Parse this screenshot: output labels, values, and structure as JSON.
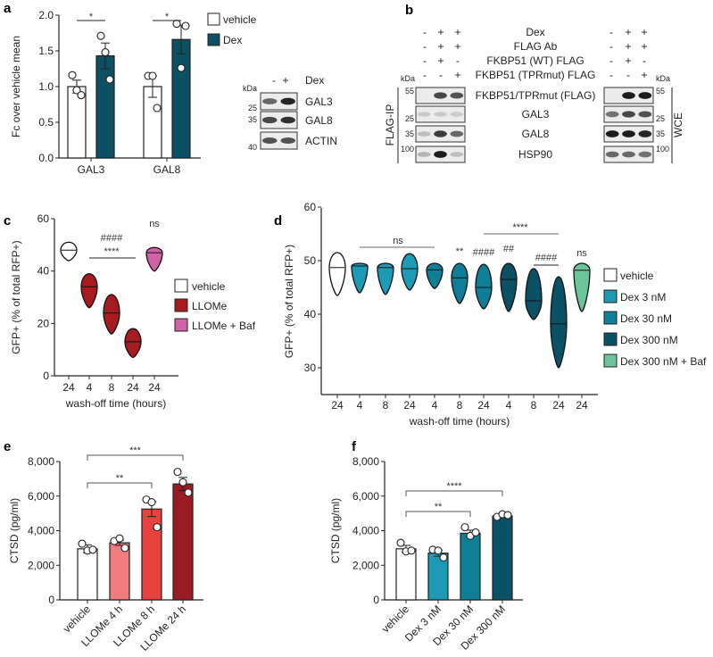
{
  "panel_labels": [
    "a",
    "b",
    "c",
    "d",
    "e",
    "f"
  ],
  "chart_data": [
    {
      "id": "a",
      "type": "bar",
      "ylabel": "Fc over vehicle mean",
      "ylim": [
        0,
        2.0
      ],
      "yticks": [
        "0.0",
        "0.5",
        "1.0",
        "1.5",
        "2.0"
      ],
      "ytick_values": [
        0,
        0.5,
        1.0,
        1.5,
        2.0
      ],
      "categories": [
        "GAL3",
        "GAL8"
      ],
      "series": [
        {
          "name": "vehicle",
          "color": "#ffffff",
          "values": [
            1.0,
            1.0
          ],
          "errors": [
            0.09,
            0.15
          ],
          "points": [
            [
              1.16,
              0.95,
              0.88
            ],
            [
              1.15,
              1.15,
              0.7
            ]
          ]
        },
        {
          "name": "Dex",
          "color": "#0d4f63",
          "values": [
            1.43,
            1.66
          ],
          "errors": [
            0.18,
            0.2
          ],
          "points": [
            [
              1.71,
              1.48,
              1.1
            ],
            [
              1.88,
              1.26,
              1.85
            ]
          ]
        }
      ],
      "significance": [
        {
          "category": "GAL3",
          "label": "*"
        },
        {
          "category": "GAL8",
          "label": "*"
        }
      ],
      "legend": [
        "vehicle",
        "Dex"
      ]
    },
    {
      "id": "c",
      "type": "violin",
      "ylabel": "GFP+ (% of total RFP+)",
      "xlabel": "wash-off time (hours)",
      "ylim": [
        0,
        60
      ],
      "yticks": [
        "0",
        "20",
        "40",
        "60"
      ],
      "ytick_values": [
        0,
        20,
        40,
        60
      ],
      "groups": [
        {
          "name": "vehicle",
          "color": "#ffffff",
          "x": "24",
          "median": 48,
          "min": 44,
          "max": 51
        },
        {
          "name": "LLOMe",
          "color": "#a51b1f",
          "x": "4",
          "median": 34,
          "min": 26,
          "max": 39
        },
        {
          "name": "LLOMe",
          "color": "#a51b1f",
          "x": "8",
          "median": 24,
          "min": 16,
          "max": 31
        },
        {
          "name": "LLOMe",
          "color": "#a51b1f",
          "x": "24",
          "median": 13,
          "min": 7,
          "max": 18
        },
        {
          "name": "LLOMe + Baf",
          "color": "#d060a8",
          "x": "24",
          "median": 47,
          "min": 40,
          "max": 49
        }
      ],
      "annotations": {
        "hash": "####",
        "stars": "****",
        "ns": "ns"
      },
      "legend": [
        {
          "label": "vehicle",
          "color": "#ffffff"
        },
        {
          "label": "LLOMe",
          "color": "#a51b1f"
        },
        {
          "label": "LLOMe + Baf",
          "color": "#d060a8"
        }
      ]
    },
    {
      "id": "d",
      "type": "violin",
      "ylabel": "GFP+ (% of total RFP+)",
      "xlabel": "wash-off time (hours)",
      "ylim": [
        25,
        60
      ],
      "yticks": [
        "30",
        "40",
        "50",
        "60"
      ],
      "ytick_values": [
        30,
        40,
        50,
        60
      ],
      "groups": [
        {
          "name": "vehicle",
          "color": "#ffffff",
          "x": "24",
          "median": 48.7,
          "min": 43.5,
          "max": 51.5
        },
        {
          "name": "Dex 3 nM",
          "color": "#1d9ab5",
          "x": "4",
          "median": 49,
          "min": 44,
          "max": 49.5
        },
        {
          "name": "Dex 3 nM",
          "color": "#1d9ab5",
          "x": "8",
          "median": 48.7,
          "min": 43.7,
          "max": 49.5
        },
        {
          "name": "Dex 3 nM",
          "color": "#1d9ab5",
          "x": "24",
          "median": 48.5,
          "min": 44.5,
          "max": 51.3
        },
        {
          "name": "Dex 30 nM",
          "color": "#0e7f96",
          "x": "4",
          "median": 48.3,
          "min": 44.8,
          "max": 49.5
        },
        {
          "name": "Dex 30 nM",
          "color": "#0e7f96",
          "x": "8",
          "median": 46.8,
          "min": 42,
          "max": 49.5
        },
        {
          "name": "Dex 30 nM",
          "color": "#0e7f96",
          "x": "24",
          "median": 45,
          "min": 41,
          "max": 49.3
        },
        {
          "name": "Dex 300 nM",
          "color": "#0b5166",
          "x": "4",
          "median": 46.5,
          "min": 40.5,
          "max": 49.5
        },
        {
          "name": "Dex 300 nM",
          "color": "#0b5166",
          "x": "8",
          "median": 42.5,
          "min": 39,
          "max": 48.5
        },
        {
          "name": "Dex 300 nM",
          "color": "#0b5166",
          "x": "24",
          "median": 38.2,
          "min": 30,
          "max": 47
        },
        {
          "name": "Dex 300 nM + Baf",
          "color": "#6cc49a",
          "x": "24",
          "median": 48.2,
          "min": 40.5,
          "max": 49.5
        }
      ],
      "annotations": {
        "ns_group": "ns",
        "stars2": "**",
        "hash4a": "####",
        "hash2": "##",
        "hash4b": "####",
        "stars4": "****",
        "ns_baf": "ns"
      },
      "legend": [
        {
          "label": "vehicle",
          "color": "#ffffff"
        },
        {
          "label": "Dex 3 nM",
          "color": "#1d9ab5"
        },
        {
          "label": "Dex 30 nM",
          "color": "#0e7f96"
        },
        {
          "label": "Dex 300 nM",
          "color": "#0b5166"
        },
        {
          "label": "Dex 300 nM + Baf",
          "color": "#6cc49a"
        }
      ]
    },
    {
      "id": "e",
      "type": "bar",
      "ylabel": "CTSD (pg/ml)",
      "ylim": [
        0,
        8000
      ],
      "yticks": [
        "0",
        "2,000",
        "4,000",
        "6,000",
        "8,000"
      ],
      "ytick_values": [
        0,
        2000,
        4000,
        6000,
        8000
      ],
      "categories": [
        "vehicle",
        "LLOMe 4 h",
        "LLOMe 8 h",
        "LLOMe 24 h"
      ],
      "colors": [
        "#ffffff",
        "#f07c80",
        "#e8413f",
        "#9b1b22"
      ],
      "values": [
        2950,
        3300,
        5250,
        6700
      ],
      "errors": [
        230,
        150,
        430,
        380
      ],
      "points": [
        [
          3250,
          2850,
          2900
        ],
        [
          3400,
          3550,
          3000
        ],
        [
          5800,
          5650,
          4200
        ],
        [
          7400,
          6800,
          6200
        ]
      ],
      "brackets": [
        {
          "from": 0,
          "to": 2,
          "label": "**"
        },
        {
          "from": 0,
          "to": 3,
          "label": "***"
        }
      ]
    },
    {
      "id": "f",
      "type": "bar",
      "ylabel": "CTSD (pg/ml)",
      "ylim": [
        0,
        8000
      ],
      "yticks": [
        "0",
        "2,000",
        "4,000",
        "6,000",
        "8,000"
      ],
      "ytick_values": [
        0,
        2000,
        4000,
        6000,
        8000
      ],
      "categories": [
        "vehicle",
        "Dex 3 nM",
        "Dex 30 nM",
        "Dex 300 nM"
      ],
      "colors": [
        "#ffffff",
        "#1d9ab5",
        "#0e7f96",
        "#0b5166"
      ],
      "values": [
        2950,
        2700,
        3850,
        4850
      ],
      "errors": [
        200,
        180,
        180,
        80
      ],
      "points": [
        [
          3300,
          2800,
          2850
        ],
        [
          2900,
          2850,
          2450
        ],
        [
          4200,
          3700,
          3900
        ],
        [
          4800,
          4950,
          4900
        ]
      ],
      "brackets": [
        {
          "from": 0,
          "to": 2,
          "label": "**"
        },
        {
          "from": 0,
          "to": 3,
          "label": "****"
        }
      ]
    }
  ],
  "blot_a": {
    "treatment_label": "Dex",
    "signs": [
      "-",
      "+"
    ],
    "kda": "kDa",
    "rows": [
      {
        "label": "GAL3",
        "marker": "25",
        "bands": [
          0.6,
          0.9
        ]
      },
      {
        "label": "GAL8",
        "marker": "35",
        "bands": [
          0.75,
          0.85
        ]
      },
      {
        "label": "ACTIN",
        "marker": "40",
        "bands": [
          0.7,
          0.7
        ]
      }
    ]
  },
  "blot_b": {
    "conditions": [
      {
        "label": "Dex",
        "signs": [
          "-",
          "+",
          "+"
        ]
      },
      {
        "label": "FLAG Ab",
        "signs": [
          "-",
          "+",
          "+"
        ]
      },
      {
        "label": "FKBP51 (WT) FLAG",
        "signs": [
          "-",
          "+",
          "-"
        ]
      },
      {
        "label": "FKBP51 (TPRmut) FLAG",
        "signs": [
          "-",
          "-",
          "+"
        ]
      }
    ],
    "kda": "kDa",
    "left_group": "FLAG-IP",
    "right_group": "WCE",
    "rows": [
      {
        "label": "FKBP51/TPRmut (FLAG)",
        "marker": "55",
        "ip": [
          0,
          0.75,
          0.7
        ],
        "wce": [
          0,
          0.95,
          0.95
        ]
      },
      {
        "label": "GAL3",
        "marker": "25",
        "ip": [
          0.15,
          0.15,
          0.15
        ],
        "wce": [
          0.55,
          0.75,
          0.7
        ]
      },
      {
        "label": "GAL8",
        "marker": "35",
        "ip": [
          0.2,
          0.8,
          0.6
        ],
        "wce": [
          0.95,
          0.95,
          0.9
        ]
      },
      {
        "label": "HSP90",
        "marker": "100",
        "ip": [
          0.25,
          0.95,
          0.2
        ],
        "wce": [
          0.6,
          0.6,
          0.55
        ]
      }
    ]
  }
}
